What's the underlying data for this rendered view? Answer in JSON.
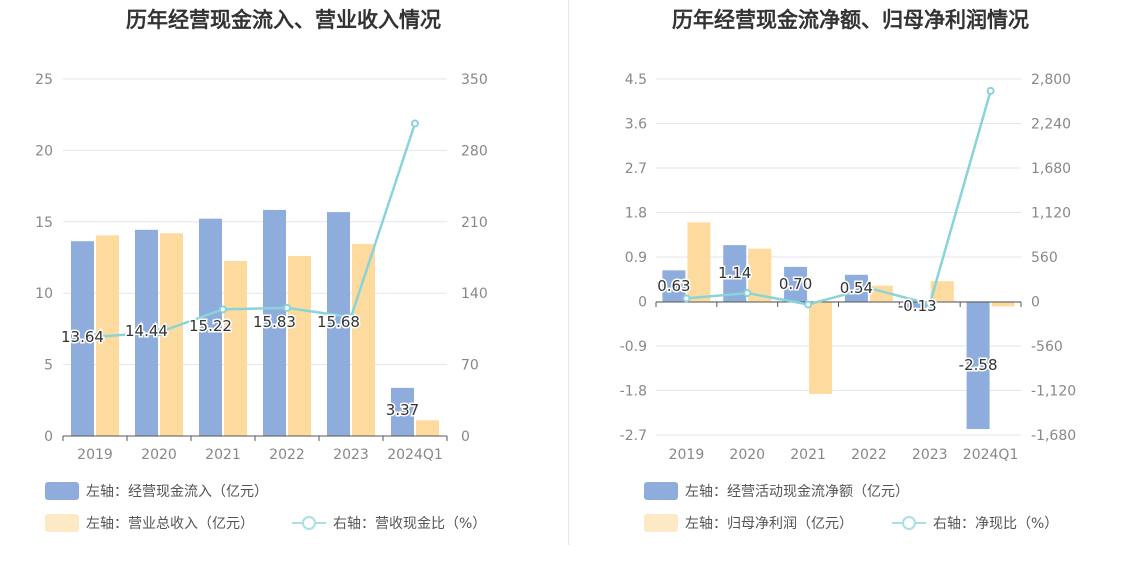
{
  "colors": {
    "bar1": "#8eaddc",
    "bar2": "#fdda9e",
    "line": "#8ad4d8",
    "grid": "#e3e6ee",
    "axis": "#555555",
    "tick": "#888888"
  },
  "chart_data": [
    {
      "type": "bar",
      "title": "历年经营现金流入、营业收入情况",
      "categories": [
        "2019",
        "2020",
        "2021",
        "2022",
        "2023",
        "2024Q1"
      ],
      "left_axis": {
        "ticks": [
          "0",
          "5",
          "10",
          "15",
          "20",
          "25"
        ],
        "ylim": [
          0,
          25
        ]
      },
      "right_axis": {
        "ticks": [
          "0",
          "70",
          "140",
          "210",
          "280",
          "350"
        ],
        "ylim": [
          0,
          350
        ]
      },
      "series": [
        {
          "name": "左轴：经营现金流入（亿元）",
          "kind": "bar",
          "axis": "left",
          "values": [
            13.64,
            14.44,
            15.22,
            15.83,
            15.68,
            3.37
          ]
        },
        {
          "name": "左轴：营业总收入（亿元）",
          "kind": "bar",
          "axis": "left",
          "values": [
            14.05,
            14.2,
            12.25,
            12.6,
            13.45,
            1.1
          ]
        },
        {
          "name": "右轴：营收现金比（%）",
          "kind": "line",
          "axis": "right",
          "values": [
            97.1,
            101.7,
            124.2,
            125.6,
            116.6,
            306.4
          ]
        }
      ],
      "data_labels": [
        "13.64",
        "14.44",
        "15.22",
        "15.83",
        "15.68",
        "3.37"
      ]
    },
    {
      "type": "bar",
      "title": "历年经营现金流净额、归母净利润情况",
      "categories": [
        "2019",
        "2020",
        "2021",
        "2022",
        "2023",
        "2024Q1"
      ],
      "left_axis": {
        "ticks": [
          "-2.7",
          "-1.8",
          "-0.9",
          "0",
          "0.9",
          "1.8",
          "2.7",
          "3.6",
          "4.5"
        ],
        "ylim": [
          -2.7,
          4.5
        ]
      },
      "right_axis": {
        "ticks": [
          "-1,680",
          "-1,120",
          "-560",
          "0",
          "560",
          "1,120",
          "1,680",
          "2,240",
          "2,800"
        ],
        "ylim": [
          -1680,
          2800
        ]
      },
      "series": [
        {
          "name": "左轴：经营活动现金流净额（亿元）",
          "kind": "bar",
          "axis": "left",
          "values": [
            0.63,
            1.14,
            0.7,
            0.54,
            -0.13,
            -2.58
          ]
        },
        {
          "name": "左轴：归母净利润（亿元）",
          "kind": "bar",
          "axis": "left",
          "values": [
            1.6,
            1.07,
            -1.87,
            0.32,
            0.41,
            -0.1
          ]
        },
        {
          "name": "右轴：净现比（%）",
          "kind": "line",
          "axis": "right",
          "values": [
            39,
            106,
            -37,
            169,
            -32,
            2650
          ]
        }
      ],
      "data_labels": [
        "0.63",
        "1.14",
        "0.70",
        "0.54",
        "-0.13",
        "-2.58"
      ]
    }
  ]
}
